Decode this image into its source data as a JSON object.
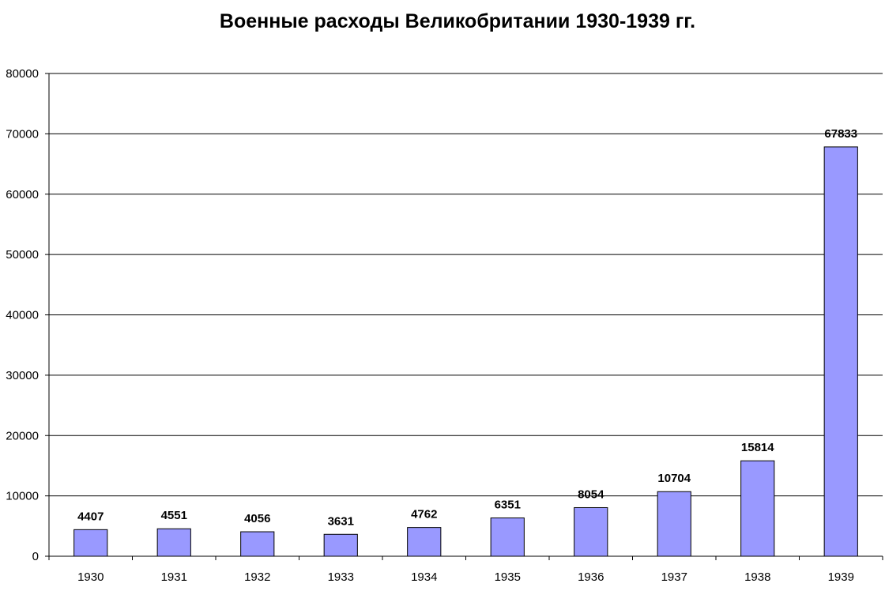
{
  "chart_data": {
    "type": "bar",
    "title": "Военные расходы Великобритании 1930-1939 гг.",
    "xlabel": "",
    "ylabel": "",
    "categories": [
      "1930",
      "1931",
      "1932",
      "1933",
      "1934",
      "1935",
      "1936",
      "1937",
      "1938",
      "1939"
    ],
    "values": [
      4407,
      4551,
      4056,
      3631,
      4762,
      6351,
      8054,
      10704,
      15814,
      67833
    ],
    "data_labels": [
      "4407",
      "4551",
      "4056",
      "3631",
      "4762",
      "6351",
      "8054",
      "10704",
      "15814",
      "67833"
    ],
    "ylim": [
      0,
      80000
    ],
    "yticks": [
      0,
      10000,
      20000,
      30000,
      40000,
      50000,
      60000,
      70000,
      80000
    ],
    "ytick_labels": [
      "0",
      "10000",
      "20000",
      "30000",
      "40000",
      "50000",
      "60000",
      "70000",
      "80000"
    ],
    "grid": true,
    "legend": "none",
    "colors": {
      "bar": "#9999ff",
      "bar_border": "#000000",
      "grid": "#000000"
    }
  }
}
